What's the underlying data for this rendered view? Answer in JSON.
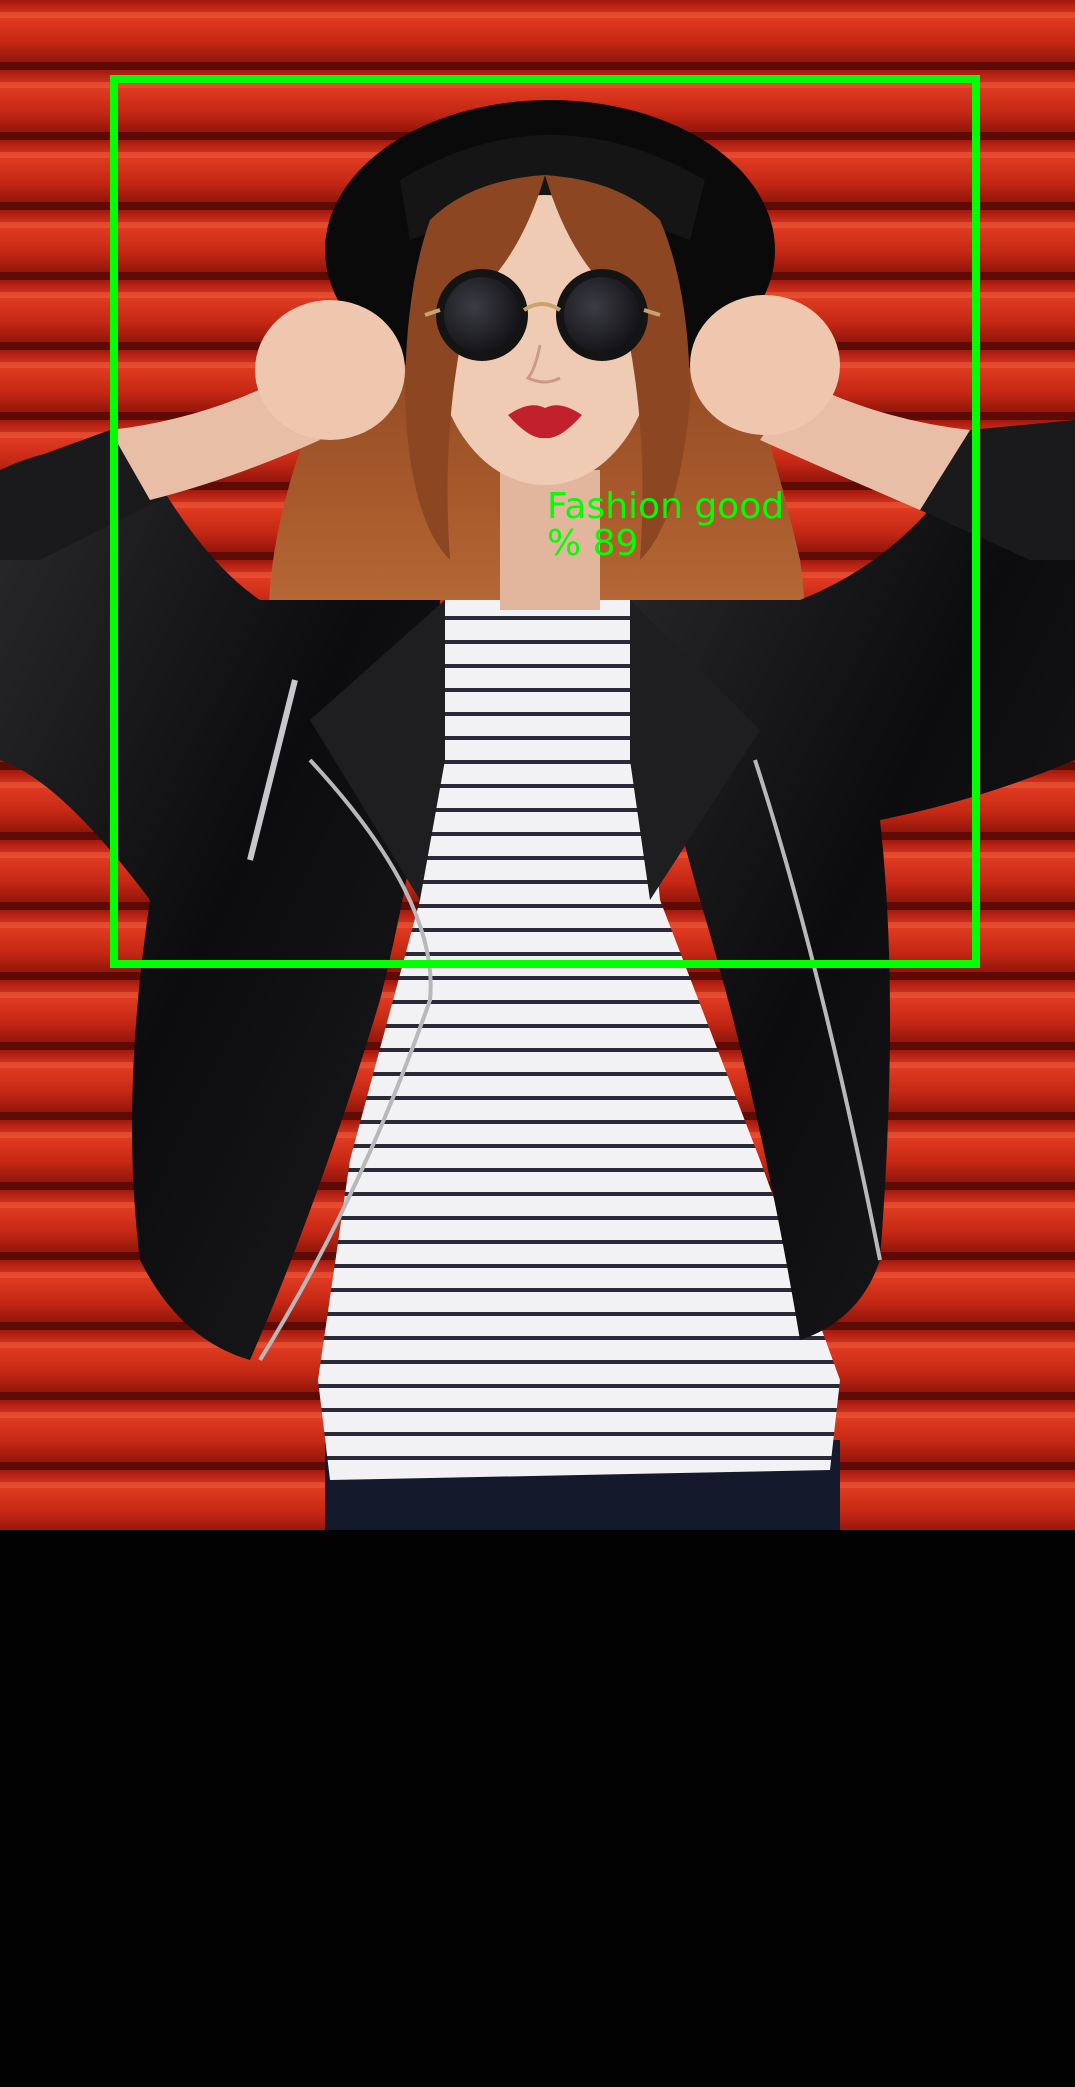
{
  "detection": {
    "label": "Fashion good",
    "confidence_text": "% 89",
    "box_color": "#00ff00"
  },
  "colors": {
    "background_wall": "#cc2a18",
    "bottom_area": "#020202"
  }
}
